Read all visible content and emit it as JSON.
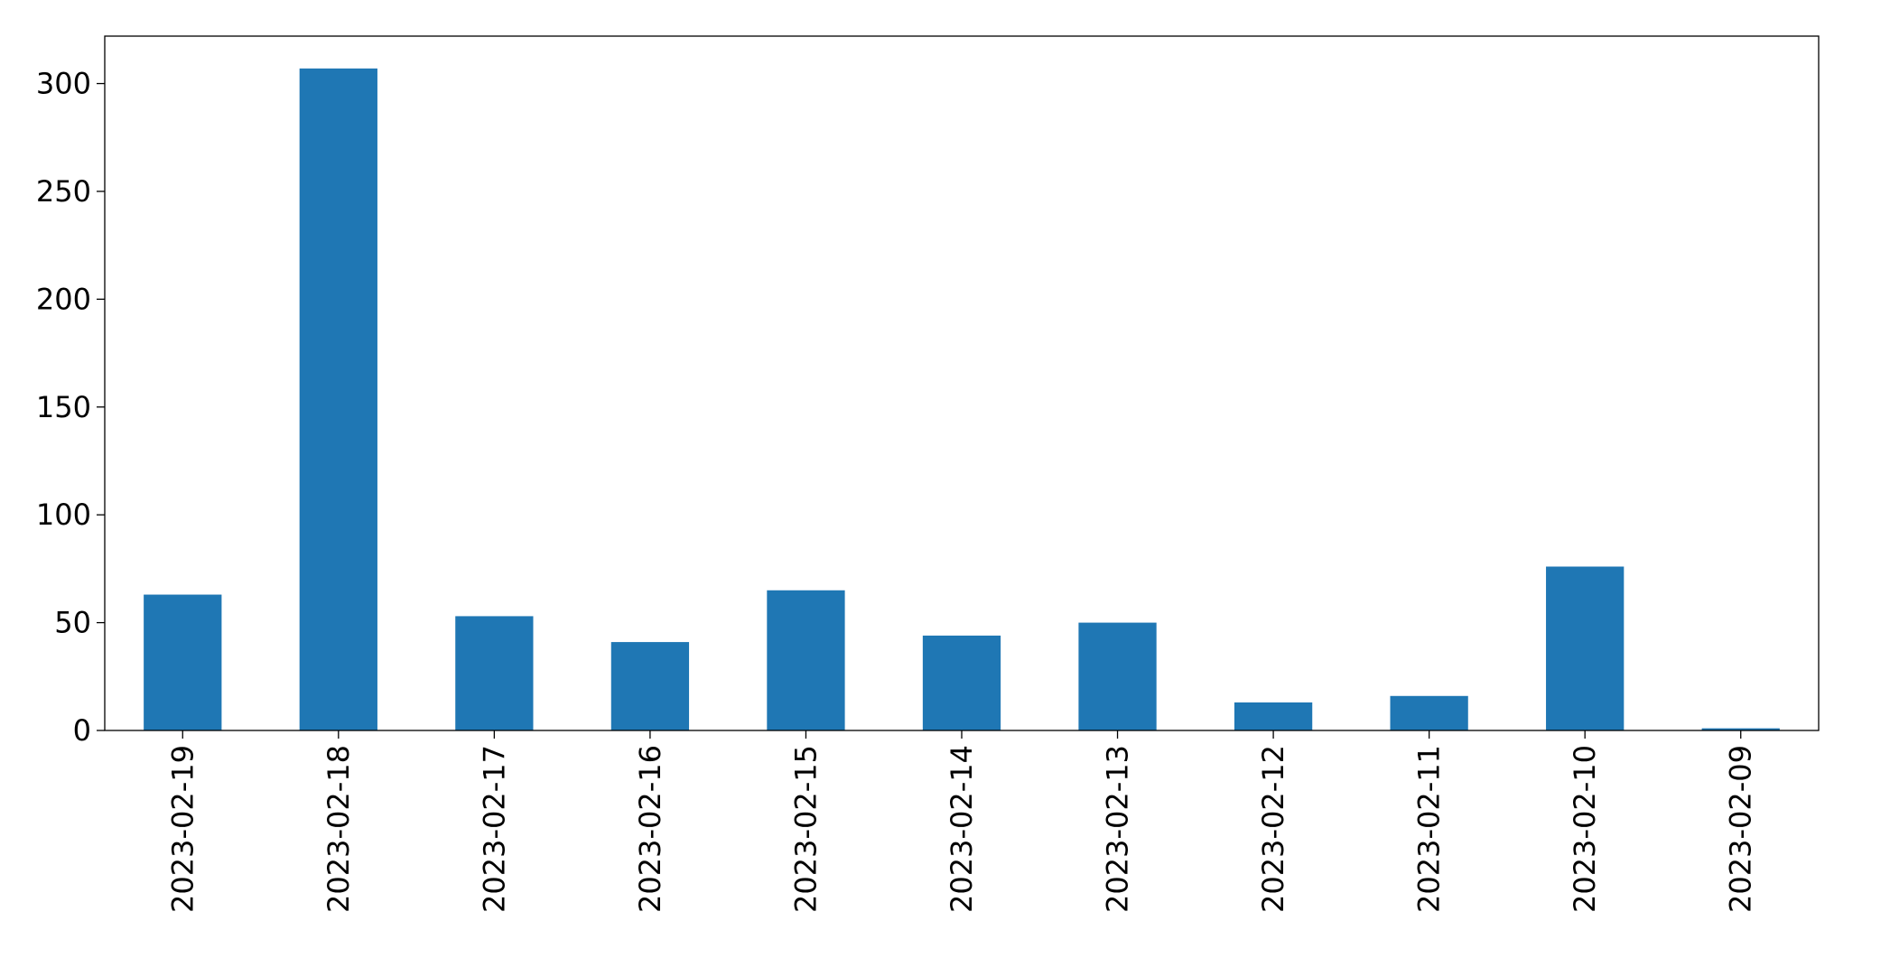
{
  "chart_data": {
    "type": "bar",
    "categories": [
      "2023-02-19",
      "2023-02-18",
      "2023-02-17",
      "2023-02-16",
      "2023-02-15",
      "2023-02-14",
      "2023-02-13",
      "2023-02-12",
      "2023-02-11",
      "2023-02-10",
      "2023-02-09"
    ],
    "values": [
      63,
      307,
      53,
      41,
      65,
      44,
      50,
      13,
      16,
      76,
      1
    ],
    "color": "#1f77b4",
    "ylim": [
      0,
      322
    ],
    "yticks": [
      0,
      50,
      100,
      150,
      200,
      250,
      300
    ],
    "grid": false
  }
}
